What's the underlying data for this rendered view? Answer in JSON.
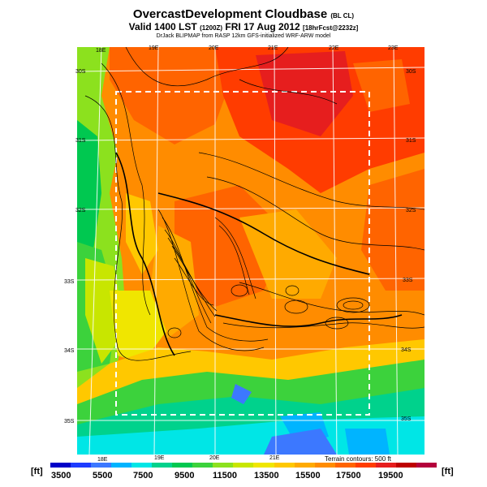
{
  "title": {
    "main": "OvercastDevelopment Cloudbase",
    "main_suffix": "(BL CL)",
    "valid": "Valid 1400 LST",
    "valid_utc": "(1200Z)",
    "valid_date": "FRI 17 Aug 2012",
    "valid_fcst": "[18hrFcst@2232z]",
    "credit": "DrJack BLIPMAP from RASP 12km GFS-initialized WRF-ARW model"
  },
  "map": {
    "lon_top_labels": [
      "18E",
      "19E",
      "20E",
      "21E",
      "22E",
      "23E"
    ],
    "lon_bottom_labels": [
      "18E",
      "19E",
      "20E",
      "21E"
    ],
    "lat_left_labels": [
      "30S",
      "31S",
      "32S",
      "33S",
      "34S",
      "35S"
    ],
    "lat_right_labels": [
      "30S",
      "31S",
      "32S",
      "33S",
      "34S",
      "35S"
    ],
    "terrain_note": "Terrain contours: 500 ft"
  },
  "colorbar": {
    "unit_left": "[ft]",
    "unit_right": "[ft]",
    "labels": [
      "3500",
      "5500",
      "7500",
      "9500",
      "11500",
      "13500",
      "15500",
      "17500",
      "19500"
    ],
    "colors": [
      "#0000c8",
      "#1e3cff",
      "#3c78ff",
      "#00b4ff",
      "#00e6e6",
      "#00d28c",
      "#00c850",
      "#3cd23c",
      "#8ce11e",
      "#c8e600",
      "#f0e600",
      "#ffc800",
      "#ffaa00",
      "#ff8c00",
      "#ff6400",
      "#ff3c00",
      "#e61e1e",
      "#be0000",
      "#b4003c"
    ]
  }
}
